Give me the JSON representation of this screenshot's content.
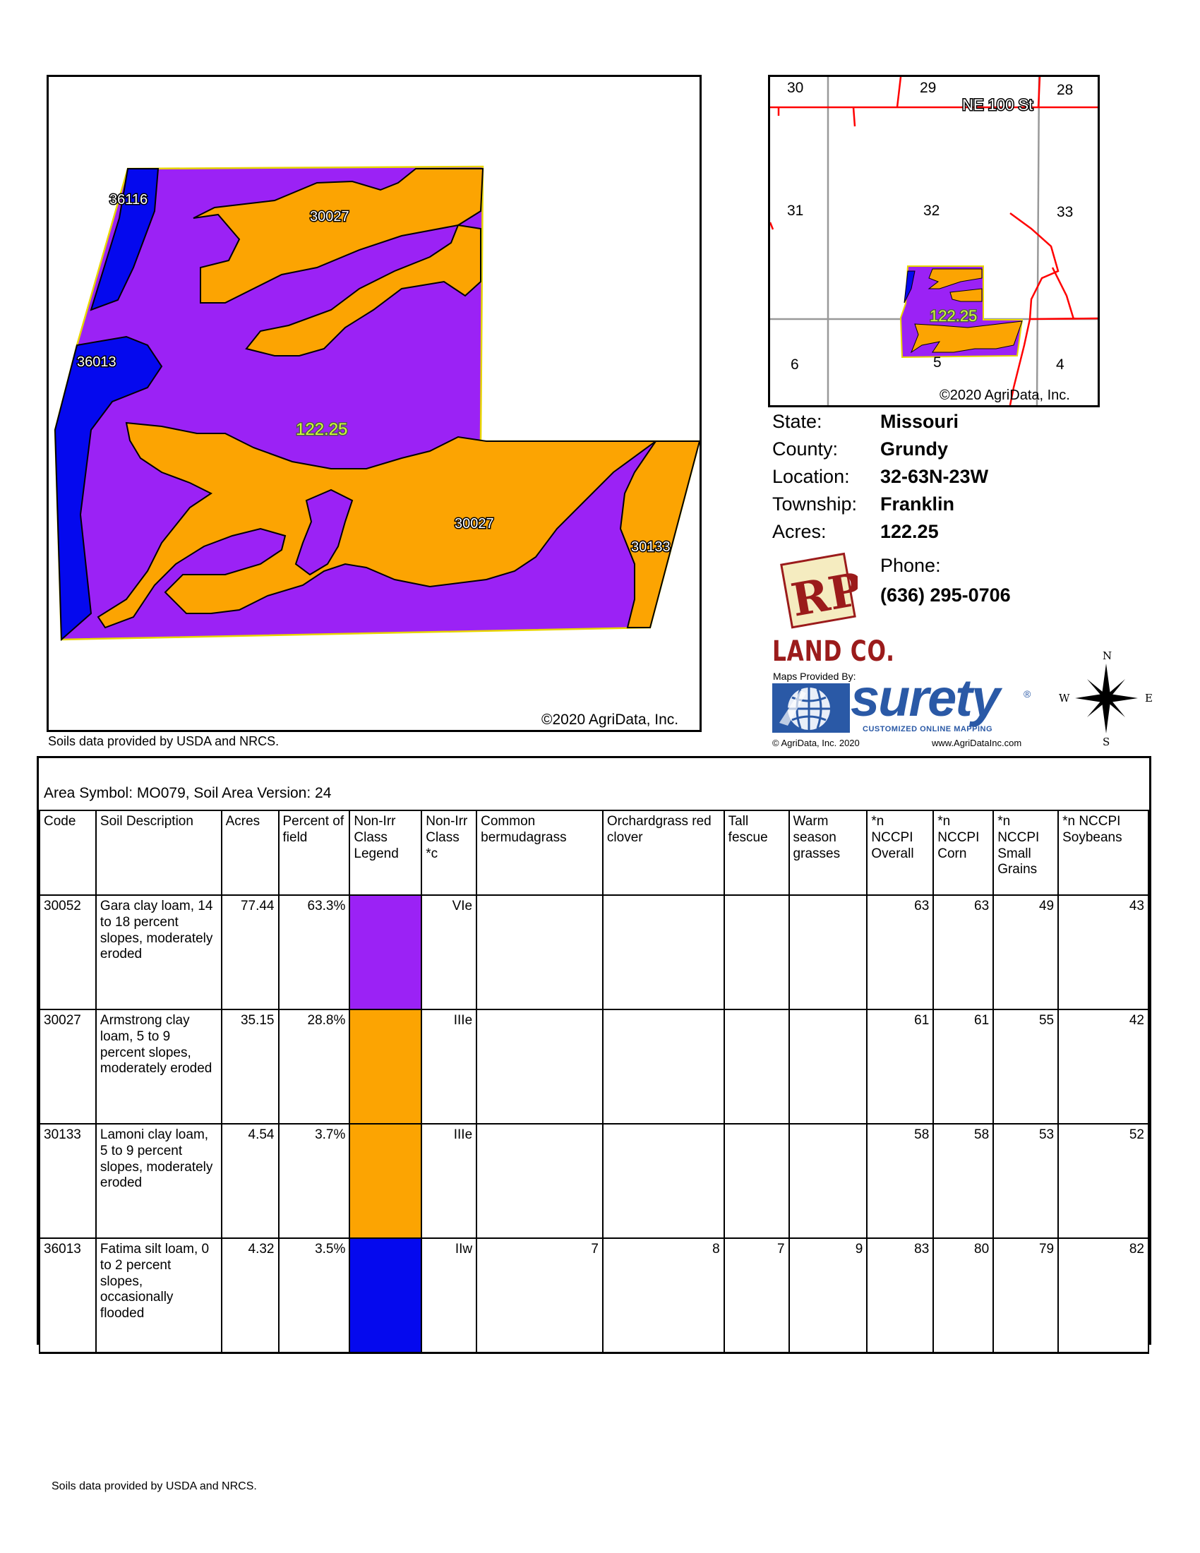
{
  "map": {
    "polygon_labels": [
      "36116",
      "30027",
      "36013",
      "30027",
      "30133"
    ],
    "acres_label": "122.25",
    "copyright": "©2020 AgriData, Inc.",
    "colors": {
      "purple": "#9b22f5",
      "orange": "#fca402",
      "blue": "#0509ee"
    }
  },
  "soils_note_top": "Soils data provided by USDA and NRCS.",
  "location_map": {
    "section_labels": [
      "30",
      "29",
      "28",
      "31",
      "32",
      "33",
      "6",
      "5",
      "4"
    ],
    "road_label": "NE 100 St",
    "acres_label": "122.25",
    "copyright": "©2020 AgriData, Inc."
  },
  "info": {
    "state_label": "State:",
    "state": "Missouri",
    "county_label": "County:",
    "county": "Grundy",
    "location_label": "Location:",
    "location": "32-63N-23W",
    "township_label": "Township:",
    "township": "Franklin",
    "acres_label": "Acres:",
    "acres": "122.25",
    "phone_label": "Phone:",
    "phone": "(636) 295-0706"
  },
  "logo": {
    "rp_text": "RP",
    "company": "LAND CO.",
    "maps_by": "Maps Provided By:",
    "surety": "surety",
    "surety_reg": "®",
    "surety_tag": "CUSTOMIZED ONLINE MAPPING",
    "agridata_copy": "© AgriData, Inc. 2020",
    "agridata_url": "www.AgriDataInc.com"
  },
  "compass": {
    "n": "N",
    "s": "S",
    "e": "E",
    "w": "W"
  },
  "table": {
    "caption": "Area Symbol: MO079, Soil Area Version: 24",
    "headers": [
      "Code",
      "Soil Description",
      "Acres",
      "Percent of field",
      "Non-Irr Class Legend",
      "Non-Irr Class *c",
      "Common bermudagrass",
      "Orchardgrass red clover",
      "Tall fescue",
      "Warm season grasses",
      "*n NCCPI Overall",
      "*n NCCPI Corn",
      "*n NCCPI Small Grains",
      "*n NCCPI Soybeans"
    ],
    "rows": [
      {
        "code": "30052",
        "desc": "Gara clay loam, 14 to 18 percent slopes, moderately eroded",
        "acres": "77.44",
        "pct": "63.3%",
        "legend_color": "#9b22f5",
        "cls": "VIe",
        "berm": "",
        "orch": "",
        "fescue": "",
        "warm": "",
        "overall": "63",
        "corn": "63",
        "small": "49",
        "soy": "43"
      },
      {
        "code": "30027",
        "desc": "Armstrong clay loam, 5 to 9 percent slopes, moderately eroded",
        "acres": "35.15",
        "pct": "28.8%",
        "legend_color": "#fca402",
        "cls": "IIIe",
        "berm": "",
        "orch": "",
        "fescue": "",
        "warm": "",
        "overall": "61",
        "corn": "61",
        "small": "55",
        "soy": "42"
      },
      {
        "code": "30133",
        "desc": "Lamoni clay loam, 5 to 9 percent slopes, moderately eroded",
        "acres": "4.54",
        "pct": "3.7%",
        "legend_color": "#fca402",
        "cls": "IIIe",
        "berm": "",
        "orch": "",
        "fescue": "",
        "warm": "",
        "overall": "58",
        "corn": "58",
        "small": "53",
        "soy": "52"
      },
      {
        "code": "36013",
        "desc": "Fatima silt loam, 0 to 2 percent slopes, occasionally flooded",
        "acres": "4.32",
        "pct": "3.5%",
        "legend_color": "#0509ee",
        "cls": "IIw",
        "berm": "7",
        "orch": "8",
        "fescue": "7",
        "warm": "9",
        "overall": "83",
        "corn": "80",
        "small": "79",
        "soy": "82"
      }
    ]
  },
  "footer": "Soils data provided by USDA and NRCS."
}
